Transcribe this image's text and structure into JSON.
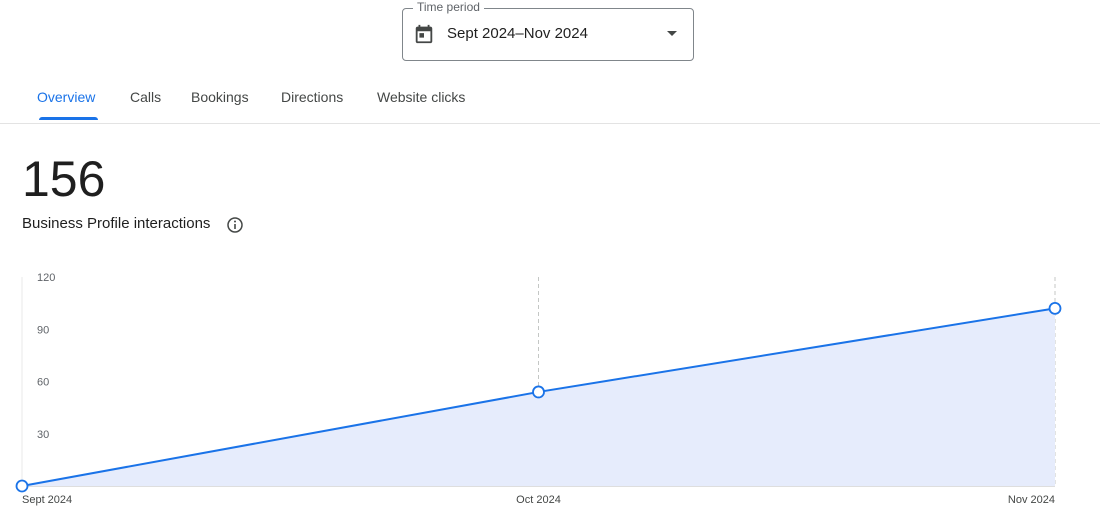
{
  "time_period": {
    "label": "Time period",
    "value": "Sept 2024–Nov 2024"
  },
  "tabs": [
    "Overview",
    "Calls",
    "Bookings",
    "Directions",
    "Website clicks"
  ],
  "active_tab": 0,
  "summary": {
    "value": 156,
    "label": "Business Profile interactions"
  },
  "chart_data": {
    "type": "area",
    "categories": [
      "Sept 2024",
      "Oct 2024",
      "Nov 2024"
    ],
    "values": [
      0,
      54,
      102
    ],
    "color": "#1a73e8",
    "fill": "#e6ecfc",
    "ylim": [
      0,
      120
    ],
    "yticks": [
      30,
      60,
      90,
      120
    ],
    "grid": "vertical"
  }
}
